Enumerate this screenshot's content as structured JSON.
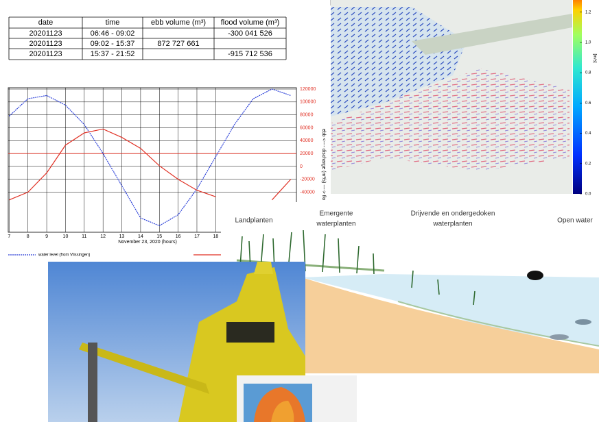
{
  "table": {
    "headers": [
      "date",
      "time",
      "ebb volume (m³)",
      "flood volume (m³)"
    ],
    "rows": [
      [
        "20201123",
        "06:46 - 09:02",
        "",
        "-300 041 526"
      ],
      [
        "20201123",
        "09:02 - 15:37",
        "872 727 661",
        ""
      ],
      [
        "20201123",
        "15:37 - 21:52",
        "",
        "-915 712 536"
      ]
    ]
  },
  "chart_data": {
    "type": "line",
    "xlabel": "November 23, 2020  (hours)",
    "ylabel": "ebb <---- discharge (m³/s) ----> flo",
    "x": [
      7,
      8,
      9,
      10,
      11,
      12,
      13,
      14,
      15,
      16,
      17,
      18,
      19,
      20,
      21,
      22
    ],
    "xlim": [
      6.95,
      22.3
    ],
    "xticks": [
      7,
      8,
      9,
      10,
      11,
      12,
      13,
      14,
      15,
      16,
      17,
      18
    ],
    "ylim": [
      -100000,
      120000
    ],
    "yticks": [
      120000,
      100000,
      80000,
      60000,
      40000,
      20000,
      0,
      -20000,
      -40000
    ],
    "reference_line": 20000,
    "grid": true,
    "series": [
      {
        "name": "water level  (from Vlissingen)",
        "color": "#2a3fd8",
        "dash": true,
        "values": [
          78000,
          105000,
          110000,
          95000,
          65000,
          20000,
          -30000,
          -80000,
          -92000,
          -75000,
          -35000,
          15000,
          65000,
          105000,
          120000,
          110000
        ]
      },
      {
        "color": "#e03024",
        "values": [
          -52000,
          -40000,
          -10000,
          33000,
          52000,
          58000,
          45000,
          28000,
          1000,
          -20000,
          -37000,
          -47000,
          null,
          null,
          -52000,
          -20000
        ]
      }
    ]
  },
  "colorbar": {
    "lim": [
      0,
      1.28
    ],
    "unit": "[m/s]",
    "ticks": [
      1.2,
      {
        "value": 1,
        "label": "1.0"
      },
      0.8,
      0.6,
      0.4,
      0.2,
      {
        "value": 0,
        "label": "0.0"
      }
    ]
  },
  "diagram": {
    "labels": [
      {
        "lines": [
          "Landplanten"
        ]
      },
      {
        "lines": [
          "Emergente",
          "waterplanten"
        ]
      },
      {
        "lines": [
          "Drijvende en ondergedoken",
          "waterplanten"
        ]
      },
      {
        "lines": [
          "Open water"
        ]
      }
    ]
  }
}
